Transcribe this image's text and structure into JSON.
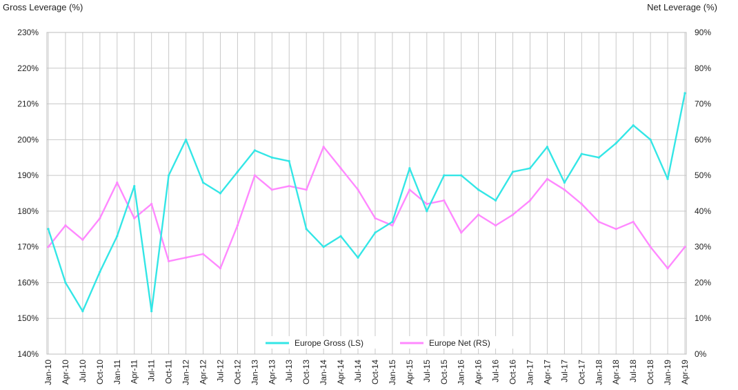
{
  "chart_data": {
    "type": "line",
    "title": "",
    "y_left_label": "Gross Leverage (%)",
    "y_right_label": "Net Leverage (%)",
    "y_left_ticks": [
      "140%",
      "150%",
      "160%",
      "170%",
      "180%",
      "190%",
      "200%",
      "210%",
      "220%",
      "230%"
    ],
    "y_right_ticks": [
      "0%",
      "10%",
      "20%",
      "30%",
      "40%",
      "50%",
      "60%",
      "70%",
      "80%",
      "90%"
    ],
    "y_left_range": [
      140,
      230
    ],
    "y_right_range": [
      0,
      90
    ],
    "x_ticks": [
      "Jan-10",
      "Apr-10",
      "Jul-10",
      "Oct-10",
      "Jan-11",
      "Apr-11",
      "Jul-11",
      "Oct-11",
      "Jan-12",
      "Apr-12",
      "Jul-12",
      "Oct-12",
      "Jan-13",
      "Apr-13",
      "Jul-13",
      "Oct-13",
      "Jan-14",
      "Apr-14",
      "Jul-14",
      "Oct-14",
      "Jan-15",
      "Apr-15",
      "Jul-15",
      "Oct-15",
      "Jan-16",
      "Apr-16",
      "Jul-16",
      "Oct-16",
      "Jan-17",
      "Apr-17",
      "Jul-17",
      "Oct-17",
      "Jan-18",
      "Apr-18",
      "Jul-18",
      "Oct-18",
      "Jan-19",
      "Apr-19"
    ],
    "grid": true,
    "legend_position": "bottom-center",
    "series": [
      {
        "name": "Europe Gross (LS)",
        "axis": "left",
        "color": "#33e6e6",
        "x": [
          "Jan-10",
          "Apr-10",
          "Jul-10",
          "Oct-10",
          "Jan-11",
          "Apr-11",
          "Jul-11",
          "Oct-11",
          "Jan-12",
          "Apr-12",
          "Jul-12",
          "Oct-12",
          "Jan-13",
          "Apr-13",
          "Jul-13",
          "Oct-13",
          "Jan-14",
          "Apr-14",
          "Jul-14",
          "Oct-14",
          "Jan-15",
          "Apr-15",
          "Jul-15",
          "Oct-15",
          "Jan-16",
          "Apr-16",
          "Jul-16",
          "Oct-16",
          "Jan-17",
          "Apr-17",
          "Jul-17",
          "Oct-17",
          "Jan-18",
          "Apr-18",
          "Jul-18",
          "Oct-18",
          "Jan-19",
          "Apr-19"
        ],
        "values": [
          175,
          160,
          152,
          163,
          173,
          187,
          152,
          190,
          200,
          188,
          185,
          191,
          197,
          195,
          194,
          175,
          170,
          173,
          167,
          174,
          177,
          192,
          180,
          190,
          190,
          186,
          183,
          191,
          192,
          198,
          188,
          196,
          195,
          199,
          204,
          200,
          189,
          213
        ]
      },
      {
        "name": "Europe Net (RS)",
        "axis": "right",
        "color": "#ff88ff",
        "x": [
          "Jan-10",
          "Apr-10",
          "Jul-10",
          "Oct-10",
          "Jan-11",
          "Apr-11",
          "Jul-11",
          "Oct-11",
          "Jan-12",
          "Apr-12",
          "Jul-12",
          "Oct-12",
          "Jan-13",
          "Apr-13",
          "Jul-13",
          "Oct-13",
          "Jan-14",
          "Apr-14",
          "Jul-14",
          "Oct-14",
          "Jan-15",
          "Apr-15",
          "Jul-15",
          "Oct-15",
          "Jan-16",
          "Apr-16",
          "Jul-16",
          "Oct-16",
          "Jan-17",
          "Apr-17",
          "Jul-17",
          "Oct-17",
          "Jan-18",
          "Apr-18",
          "Jul-18",
          "Oct-18",
          "Jan-19",
          "Apr-19"
        ],
        "values": [
          30,
          36,
          32,
          38,
          48,
          38,
          42,
          26,
          27,
          28,
          24,
          36,
          50,
          46,
          47,
          46,
          58,
          52,
          46,
          38,
          36,
          46,
          42,
          43,
          34,
          39,
          36,
          39,
          43,
          49,
          46,
          42,
          37,
          35,
          37,
          30,
          24,
          30
        ]
      }
    ]
  }
}
